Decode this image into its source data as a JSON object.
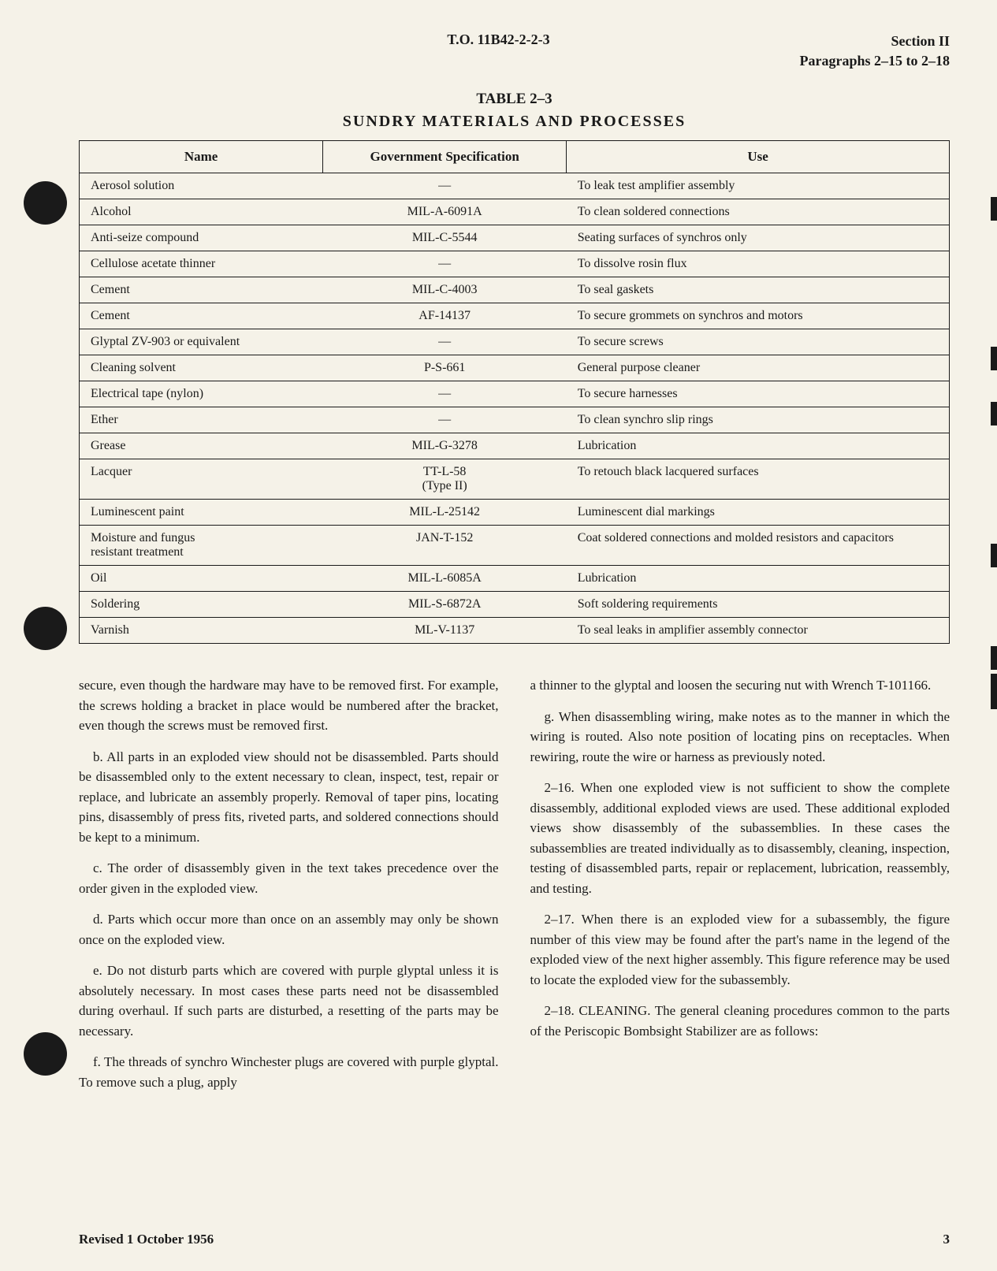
{
  "header": {
    "to_number": "T.O. 11B42-2-2-3",
    "section": "Section II",
    "paragraphs": "Paragraphs 2–15 to 2–18"
  },
  "table": {
    "number": "TABLE 2–3",
    "title": "SUNDRY MATERIALS AND PROCESSES",
    "columns": [
      "Name",
      "Government Specification",
      "Use"
    ],
    "rows": [
      [
        "Aerosol solution",
        "—",
        "To leak test amplifier assembly"
      ],
      [
        "Alcohol",
        "MIL-A-6091A",
        "To clean soldered connections"
      ],
      [
        "Anti-seize compound",
        "MIL-C-5544",
        "Seating surfaces of synchros only"
      ],
      [
        "Cellulose acetate thinner",
        "—",
        "To dissolve rosin flux"
      ],
      [
        "Cement",
        "MIL-C-4003",
        "To seal gaskets"
      ],
      [
        "Cement",
        "AF-14137",
        "To secure grommets on synchros and motors"
      ],
      [
        "Glyptal ZV-903 or equivalent",
        "—",
        "To secure screws"
      ],
      [
        "Cleaning solvent",
        "P-S-661",
        "General purpose cleaner"
      ],
      [
        "Electrical tape (nylon)",
        "—",
        "To secure harnesses"
      ],
      [
        "Ether",
        "—",
        "To clean synchro slip rings"
      ],
      [
        "Grease",
        "MIL-G-3278",
        "Lubrication"
      ],
      [
        "Lacquer",
        "TT-L-58\n(Type II)",
        "To retouch black lacquered surfaces"
      ],
      [
        "Luminescent paint",
        "MIL-L-25142",
        "Luminescent dial markings"
      ],
      [
        "Moisture and fungus\nresistant treatment",
        "JAN-T-152",
        "Coat soldered connections and molded resistors and capacitors"
      ],
      [
        "Oil",
        "MIL-L-6085A",
        "Lubrication"
      ],
      [
        "Soldering",
        "MIL-S-6872A",
        "Soft soldering requirements"
      ],
      [
        "Varnish",
        "ML-V-1137",
        "To seal leaks in amplifier assembly connector"
      ]
    ]
  },
  "body": {
    "left": [
      "secure, even though the hardware may have to be removed first. For example, the screws holding a bracket in place would be numbered after the bracket, even though the screws must be removed first.",
      "b. All parts in an exploded view should not be disassembled. Parts should be disassembled only to the extent necessary to clean, inspect, test, repair or replace, and lubricate an assembly properly. Removal of taper pins, locating pins, disassembly of press fits, riveted parts, and soldered connections should be kept to a minimum.",
      "c. The order of disassembly given in the text takes precedence over the order given in the exploded view.",
      "d. Parts which occur more than once on an assembly may only be shown once on the exploded view.",
      "e. Do not disturb parts which are covered with purple glyptal unless it is absolutely necessary. In most cases these parts need not be disassembled during overhaul. If such parts are disturbed, a resetting of the parts may be necessary.",
      "f. The threads of synchro Winchester plugs are covered with purple glyptal. To remove such a plug, apply"
    ],
    "right": [
      "a thinner to the glyptal and loosen the securing nut with Wrench T-101166.",
      "g. When disassembling wiring, make notes as to the manner in which the wiring is routed. Also note position of locating pins on receptacles. When rewiring, route the wire or harness as previously noted.",
      "2–16. When one exploded view is not sufficient to show the complete disassembly, additional exploded views are used. These additional exploded views show disassembly of the subassemblies. In these cases the subassemblies are treated individually as to disassembly, cleaning, inspection, testing of disassembled parts, repair or replacement, lubrication, reassembly, and testing.",
      "2–17. When there is an exploded view for a subassembly, the figure number of this view may be found after the part's name in the legend of the exploded view of the next higher assembly. This figure reference may be used to locate the exploded view for the subassembly.",
      "2–18. CLEANING. The general cleaning procedures common to the parts of the Periscopic Bombsight Stabilizer are as follows:"
    ]
  },
  "footer": {
    "revised": "Revised 1 October 1956",
    "page": "3"
  }
}
